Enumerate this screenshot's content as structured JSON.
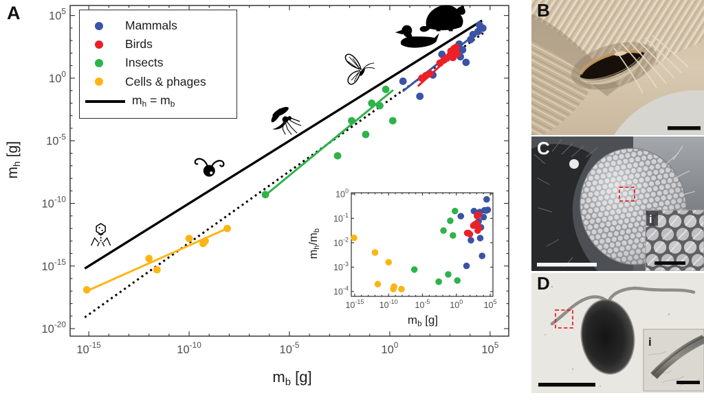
{
  "panels": {
    "a": {
      "letter": "A"
    },
    "b": {
      "letter": "B"
    },
    "c": {
      "letter": "C",
      "inset_label": "i"
    },
    "d": {
      "letter": "D",
      "inset_label": "i"
    }
  },
  "colors": {
    "mammals": "#3A53A4",
    "birds": "#EC2027",
    "insects": "#2EB34B",
    "cells_phages": "#FDB515",
    "identity_line": "#000000",
    "fit_dotted": "#000000",
    "axis": "#2b2b2b",
    "tick_label": "#4d4d4f",
    "roi_box": "#ED1C24"
  },
  "legend": {
    "items": [
      {
        "label": "Mammals",
        "series": "mammals"
      },
      {
        "label": "Birds",
        "series": "birds"
      },
      {
        "label": "Insects",
        "series": "insects"
      },
      {
        "label": "Cells & phages",
        "series": "cells_phages"
      }
    ],
    "line_item": {
      "pre": "m",
      "sub1": "h",
      "mid": " = m",
      "sub2": "b"
    }
  },
  "axes": {
    "main": {
      "xlabel": {
        "pre": "m",
        "sub": "b",
        "post": " [g]"
      },
      "ylabel": {
        "pre": "m",
        "sub": "h",
        "post": " [g]"
      },
      "x_tick_exponents": [
        -15,
        -10,
        -5,
        0,
        5
      ],
      "y_tick_exponents": [
        5,
        0,
        -5,
        -10,
        -15,
        -20
      ],
      "xlim_log10": [
        -15.93,
        5.93
      ],
      "ylim_log10": [
        -20.6,
        5.8
      ]
    },
    "inset": {
      "xlabel": {
        "pre": "m",
        "sub": "b",
        "post": " [g]"
      },
      "ylabel": {
        "pre": "m",
        "sub1": "h",
        "mid": "/m",
        "sub2": "b"
      },
      "x_tick_exponents": [
        -15,
        -10,
        -5,
        0,
        5
      ],
      "y_tick_exponents": [
        0,
        -1,
        -2,
        -3,
        -4
      ],
      "xlim_log10": [
        -15.5,
        5.4
      ],
      "ylim_log10": [
        -4.2,
        0.05
      ]
    }
  },
  "chart_data": [
    {
      "name": "main",
      "type": "scatter",
      "x_scale": "log10",
      "y_scale": "log10",
      "xlabel": "m_b [g]",
      "ylabel": "m_h [g]",
      "xlim_exp": [
        -16,
        6
      ],
      "ylim_exp": [
        -20.6,
        5.8
      ],
      "legend_position": "top-left",
      "grid": false,
      "note": "points are [log10(m_b), log10(m_h)]",
      "series": [
        {
          "name": "Mammals",
          "color_key": "mammals",
          "points": [
            [
              0.66,
              -0.25
            ],
            [
              1.5,
              -1.45
            ],
            [
              2.15,
              0.25
            ],
            [
              2.6,
              1.9
            ],
            [
              3.29,
              2.17
            ],
            [
              3.46,
              2.72
            ],
            [
              3.52,
              1.71
            ],
            [
              3.63,
              2.26
            ],
            [
              3.8,
              1.26
            ],
            [
              4.03,
              3.08
            ],
            [
              4.15,
              3.48
            ],
            [
              4.4,
              3.72
            ],
            [
              4.47,
              4.25
            ],
            [
              4.64,
              3.99
            ]
          ]
        },
        {
          "name": "Birds",
          "color_key": "birds",
          "points": [
            [
              1.6,
              0.0
            ],
            [
              1.8,
              0.2
            ],
            [
              2.0,
              0.35
            ],
            [
              2.5,
              1.2
            ],
            [
              2.7,
              1.45
            ],
            [
              2.85,
              1.6
            ],
            [
              3.0,
              1.8
            ],
            [
              3.05,
              2.15
            ],
            [
              3.15,
              1.65
            ],
            [
              3.2,
              2.35
            ],
            [
              3.3,
              2.45
            ],
            [
              3.35,
              1.95
            ]
          ]
        },
        {
          "name": "Insects",
          "color_key": "insects",
          "points": [
            [
              -6.2,
              -9.3
            ],
            [
              -2.6,
              -6.2
            ],
            [
              -1.9,
              -3.4
            ],
            [
              -1.2,
              -4.5
            ],
            [
              -0.9,
              -2.0
            ],
            [
              -0.5,
              -2.2
            ],
            [
              -0.2,
              -0.9
            ],
            [
              0.15,
              -3.4
            ]
          ]
        },
        {
          "name": "Cells & phages",
          "color_key": "cells_phages",
          "points": [
            [
              -15.1,
              -16.9
            ],
            [
              -12.0,
              -14.4
            ],
            [
              -11.6,
              -15.3
            ],
            [
              -10.0,
              -12.8
            ],
            [
              -9.2,
              -13.0
            ],
            [
              -9.3,
              -13.2
            ],
            [
              -8.1,
              -12.0
            ]
          ]
        }
      ],
      "lines": [
        {
          "name": "allometric-fit-dotted",
          "style": "dotted",
          "color_key": "fit_dotted",
          "width": 3,
          "from": [
            -15.2,
            -19.1
          ],
          "to": [
            4.66,
            3.6
          ]
        },
        {
          "name": "identity-line",
          "label": "m_h = m_b",
          "style": "solid",
          "color_key": "identity_line",
          "width": 3.4,
          "from": [
            -15.2,
            -15.2
          ],
          "to": [
            4.6,
            4.6
          ]
        },
        {
          "name": "cells-fit",
          "style": "solid",
          "color_key": "cells_phages",
          "width": 3,
          "from": [
            -15.1,
            -17.0
          ],
          "to": [
            -8.1,
            -12.0
          ]
        },
        {
          "name": "insects-fit",
          "style": "solid",
          "color_key": "insects",
          "width": 3,
          "from": [
            -6.2,
            -9.35
          ],
          "to": [
            0.17,
            -0.95
          ]
        },
        {
          "name": "mammals-fit",
          "style": "solid",
          "color_key": "mammals",
          "width": 3,
          "from": [
            0.65,
            -1.05
          ],
          "to": [
            4.64,
            4.0
          ]
        },
        {
          "name": "birds-fit",
          "style": "solid",
          "color_key": "birds",
          "width": 3,
          "from": [
            1.4,
            -0.65
          ],
          "to": [
            3.55,
            2.5
          ]
        }
      ]
    },
    {
      "name": "inset",
      "type": "scatter",
      "x_scale": "log10",
      "y_scale": "log10",
      "xlabel": "m_b [g]",
      "ylabel": "m_h/m_b",
      "xlim_exp": [
        -15.5,
        5.4
      ],
      "ylim_exp": [
        -4.2,
        0.05
      ],
      "grid": false,
      "note": "points are [log10(m_b), log10(m_h/m_b)]",
      "series": [
        {
          "name": "Mammals",
          "color_key": "mammals",
          "points": [
            [
              0.66,
              -0.91
            ],
            [
              1.5,
              -2.95
            ],
            [
              2.15,
              -1.9
            ],
            [
              2.6,
              -0.7
            ],
            [
              3.29,
              -1.12
            ],
            [
              3.46,
              -0.74
            ],
            [
              3.52,
              -1.81
            ],
            [
              3.63,
              -1.37
            ],
            [
              3.8,
              -2.54
            ],
            [
              4.03,
              -0.95
            ],
            [
              4.15,
              -0.67
            ],
            [
              4.4,
              -0.68
            ],
            [
              4.47,
              -0.22
            ],
            [
              4.64,
              -0.65
            ]
          ]
        },
        {
          "name": "Birds",
          "color_key": "birds",
          "points": [
            [
              1.6,
              -1.6
            ],
            [
              1.8,
              -1.6
            ],
            [
              2.0,
              -1.65
            ],
            [
              2.5,
              -1.3
            ],
            [
              2.7,
              -1.25
            ],
            [
              2.85,
              -1.25
            ],
            [
              3.0,
              -1.2
            ],
            [
              3.05,
              -0.9
            ],
            [
              3.15,
              -1.5
            ],
            [
              3.2,
              -0.85
            ],
            [
              3.3,
              -0.85
            ],
            [
              3.35,
              -1.4
            ]
          ]
        },
        {
          "name": "Insects",
          "color_key": "insects",
          "points": [
            [
              -6.2,
              -3.1
            ],
            [
              -2.6,
              -3.6
            ],
            [
              -1.9,
              -1.5
            ],
            [
              -1.2,
              -3.3
            ],
            [
              -0.9,
              -1.1
            ],
            [
              -0.5,
              -1.7
            ],
            [
              -0.2,
              -0.7
            ],
            [
              0.15,
              -3.55
            ]
          ]
        },
        {
          "name": "Cells & phages",
          "color_key": "cells_phages",
          "points": [
            [
              -15.1,
              -1.8
            ],
            [
              -12.0,
              -2.4
            ],
            [
              -11.6,
              -3.7
            ],
            [
              -10.0,
              -2.8
            ],
            [
              -9.2,
              -3.8
            ],
            [
              -9.3,
              -3.9
            ],
            [
              -8.1,
              -3.9
            ]
          ]
        }
      ]
    }
  ],
  "icons": [
    {
      "name": "phage-icon",
      "log_x": -14.4,
      "log_y": -12.6
    },
    {
      "name": "cell-flagella-icon",
      "log_x": -9.0,
      "log_y": -7.4
    },
    {
      "name": "mosquito-icon",
      "log_x": -5.2,
      "log_y": -3.3
    },
    {
      "name": "butterfly-icon",
      "log_x": -1.5,
      "log_y": 0.6
    },
    {
      "name": "duck-icon",
      "log_x": 1.4,
      "log_y": 3.1
    },
    {
      "name": "beaver-icon",
      "log_x": 2.8,
      "log_y": 4.9
    }
  ]
}
